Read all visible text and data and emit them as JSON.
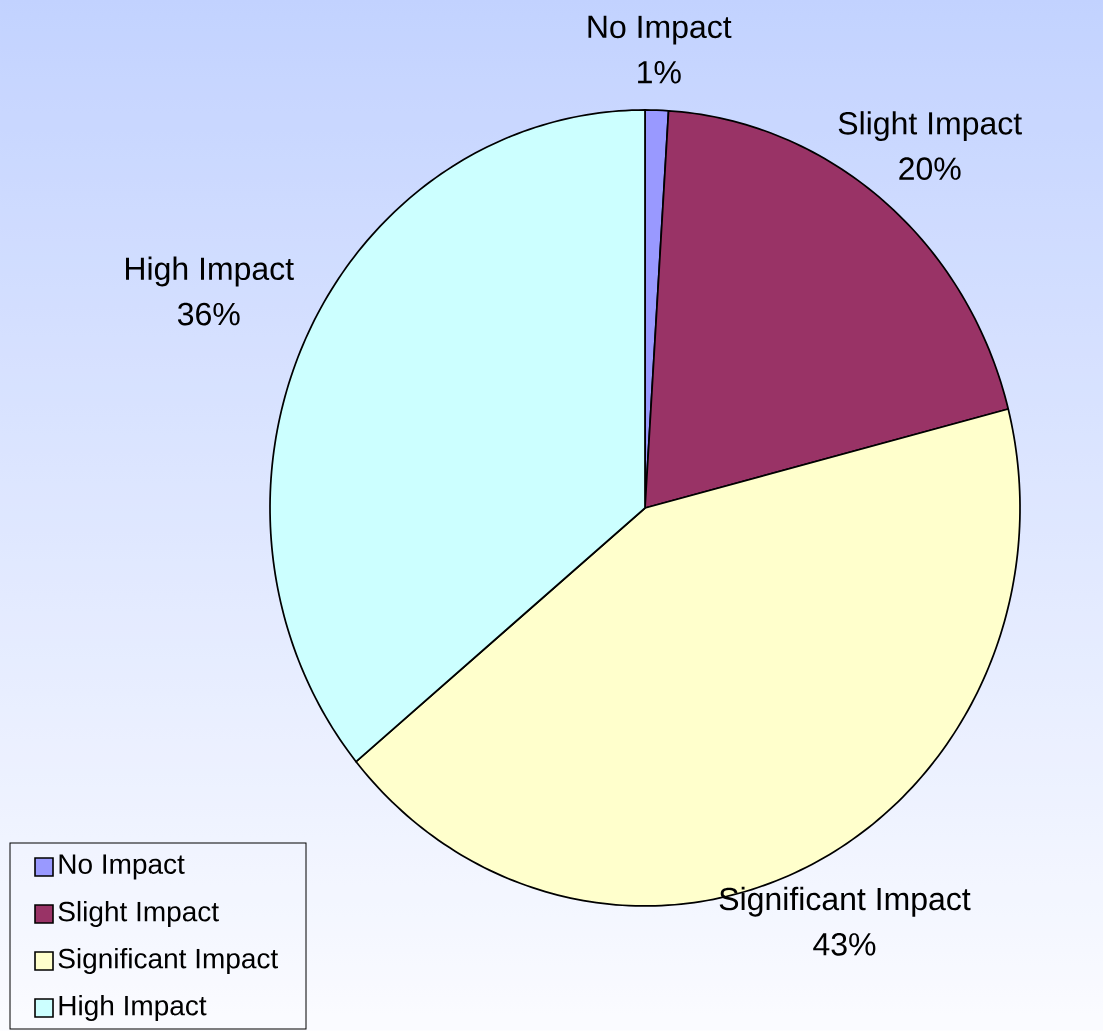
{
  "chart_data": {
    "type": "pie",
    "categories": [
      "No Impact",
      "Slight Impact",
      "Significant Impact",
      "High Impact"
    ],
    "values": [
      1,
      20,
      43,
      36
    ],
    "value_labels": [
      "1%",
      "20%",
      "43%",
      "36%"
    ],
    "colors": [
      "#9999ff",
      "#993366",
      "#ffffcc",
      "#ccffff"
    ],
    "legend": "bottom left"
  }
}
